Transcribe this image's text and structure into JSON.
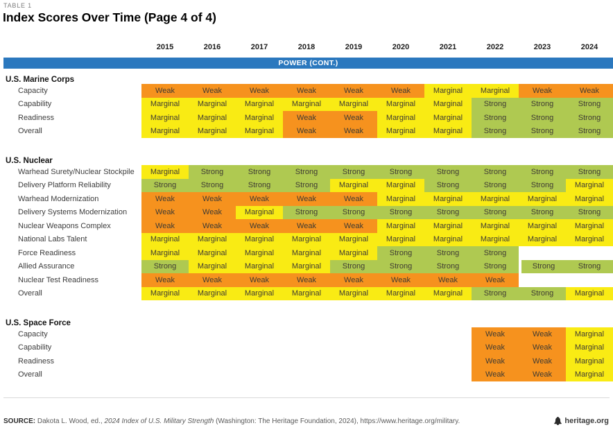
{
  "meta": {
    "table_label": "TABLE 1",
    "title": "Index Scores Over Time (Page 4 of 4)"
  },
  "banner": {
    "label": "POWER (CONT.)",
    "color": "#2B78BE"
  },
  "chart_data": {
    "type": "table",
    "columns": [
      "2015",
      "2016",
      "2017",
      "2018",
      "2019",
      "2020",
      "2021",
      "2022",
      "2023",
      "2024"
    ],
    "legend": {
      "Weak": "#F6921E",
      "Marginal": "#F9EB14",
      "Strong": "#AFC951"
    },
    "sections": [
      {
        "name": "U.S. Marine Corps",
        "rows": [
          {
            "label": "Capacity",
            "scores": [
              "Weak",
              "Weak",
              "Weak",
              "Weak",
              "Weak",
              "Weak",
              "Marginal",
              "Marginal",
              "Weak",
              "Weak"
            ]
          },
          {
            "label": "Capability",
            "scores": [
              "Marginal",
              "Marginal",
              "Marginal",
              "Marginal",
              "Marginal",
              "Marginal",
              "Marginal",
              "Strong",
              "Strong",
              "Strong"
            ]
          },
          {
            "label": "Readiness",
            "scores": [
              "Marginal",
              "Marginal",
              "Marginal",
              "Weak",
              "Weak",
              "Marginal",
              "Marginal",
              "Strong",
              "Strong",
              "Strong"
            ]
          },
          {
            "label": "Overall",
            "scores": [
              "Marginal",
              "Marginal",
              "Marginal",
              "Weak",
              "Weak",
              "Marginal",
              "Marginal",
              "Strong",
              "Strong",
              "Strong"
            ]
          }
        ]
      },
      {
        "name": "U.S. Nuclear",
        "rows": [
          {
            "label": "Warhead Surety/Nuclear Stockpile",
            "scores": [
              "Marginal",
              "Strong",
              "Strong",
              "Strong",
              "Strong",
              "Strong",
              "Strong",
              "Strong",
              "Strong",
              "Strong"
            ]
          },
          {
            "label": "Delivery Platform Reliability",
            "scores": [
              "Strong",
              "Strong",
              "Strong",
              "Strong",
              "Marginal",
              "Marginal",
              "Strong",
              "Strong",
              "Strong",
              "Marginal"
            ]
          },
          {
            "label": "Warhead Modernization",
            "scores": [
              "Weak",
              "Weak",
              "Weak",
              "Weak",
              "Weak",
              "Marginal",
              "Marginal",
              "Marginal",
              "Marginal",
              "Marginal"
            ]
          },
          {
            "label": "Delivery Systems Modernization",
            "scores": [
              "Weak",
              "Weak",
              "Marginal",
              "Strong",
              "Strong",
              "Strong",
              "Strong",
              "Strong",
              "Strong",
              "Strong"
            ]
          },
          {
            "label": "Nuclear Weapons Complex",
            "scores": [
              "Weak",
              "Weak",
              "Weak",
              "Weak",
              "Weak",
              "Marginal",
              "Marginal",
              "Marginal",
              "Marginal",
              "Marginal"
            ]
          },
          {
            "label": "National Labs Talent",
            "scores": [
              "Marginal",
              "Marginal",
              "Marginal",
              "Marginal",
              "Marginal",
              "Marginal",
              "Marginal",
              "Marginal",
              "Marginal",
              "Marginal"
            ]
          },
          {
            "label": "Force Readiness",
            "scores": [
              "Marginal",
              "Marginal",
              "Marginal",
              "Marginal",
              "Marginal",
              "Strong",
              "Strong",
              "Strong",
              null,
              null
            ]
          },
          {
            "label": "Allied Assurance",
            "scores": [
              "Strong",
              "Marginal",
              "Marginal",
              "Marginal",
              "Strong",
              "Strong",
              "Strong",
              "Strong",
              "Strong",
              "Strong"
            ],
            "gap_before": 8
          },
          {
            "label": "Nuclear Test Readiness",
            "scores": [
              "Weak",
              "Weak",
              "Weak",
              "Weak",
              "Weak",
              "Weak",
              "Weak",
              "Weak",
              null,
              null
            ]
          },
          {
            "label": "Overall",
            "scores": [
              "Marginal",
              "Marginal",
              "Marginal",
              "Marginal",
              "Marginal",
              "Marginal",
              "Marginal",
              "Strong",
              "Strong",
              "Marginal"
            ]
          }
        ]
      },
      {
        "name": "U.S. Space Force",
        "rows": [
          {
            "label": "Capacity",
            "scores": [
              null,
              null,
              null,
              null,
              null,
              null,
              null,
              "Weak",
              "Weak",
              "Marginal"
            ]
          },
          {
            "label": "Capability",
            "scores": [
              null,
              null,
              null,
              null,
              null,
              null,
              null,
              "Weak",
              "Weak",
              "Marginal"
            ]
          },
          {
            "label": "Readiness",
            "scores": [
              null,
              null,
              null,
              null,
              null,
              null,
              null,
              "Weak",
              "Weak",
              "Marginal"
            ]
          },
          {
            "label": "Overall",
            "scores": [
              null,
              null,
              null,
              null,
              null,
              null,
              null,
              "Weak",
              "Weak",
              "Marginal"
            ]
          }
        ]
      }
    ]
  },
  "footer": {
    "source_label": "SOURCE:",
    "source_pre_italic": " Dakota L. Wood, ed., ",
    "source_italic": "2024 Index of U.S. Military Strength",
    "source_post_italic": " (Washington: The Heritage Foundation, 2024), https://www.heritage.org/military.",
    "brand": "heritage.org"
  }
}
